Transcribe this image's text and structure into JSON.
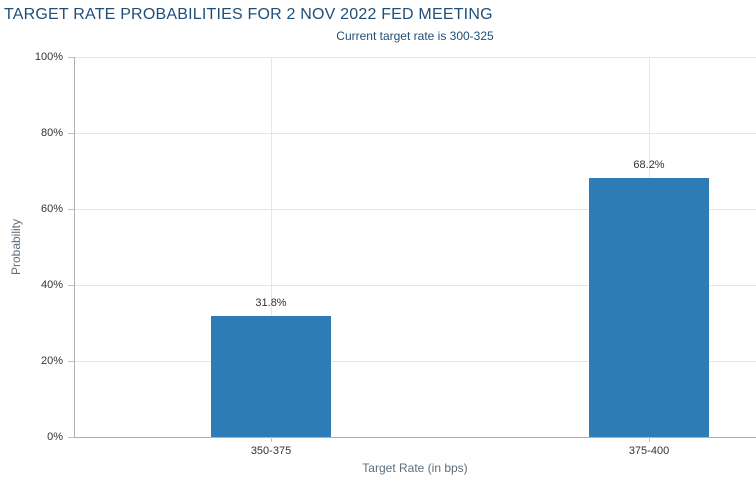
{
  "chart_data": {
    "type": "bar",
    "title": "TARGET RATE PROBABILITIES FOR 2 NOV 2022 FED MEETING",
    "subtitle": "Current target rate is 300-325",
    "categories": [
      "350-375",
      "375-400"
    ],
    "values": [
      31.8,
      68.2
    ],
    "value_labels": [
      "31.8%",
      "68.2%"
    ],
    "xlabel": "Target Rate (in bps)",
    "ylabel": "Probability",
    "ylim": [
      0,
      100
    ],
    "ytick_step": 20,
    "ytick_labels": [
      "0%",
      "20%",
      "40%",
      "60%",
      "80%",
      "100%"
    ],
    "grid": true,
    "legend": "none"
  },
  "colors": {
    "title": "#1f4e79",
    "subtitle": "#1f4e79",
    "bar": "#2e7cb5",
    "gridline": "#e6e6e6",
    "axis_line": "#b0b0b0",
    "tick_mark": "#c0c0c0",
    "tick_label": "#333333",
    "value_label": "#333333",
    "axis_title": "#5f6e7a"
  }
}
